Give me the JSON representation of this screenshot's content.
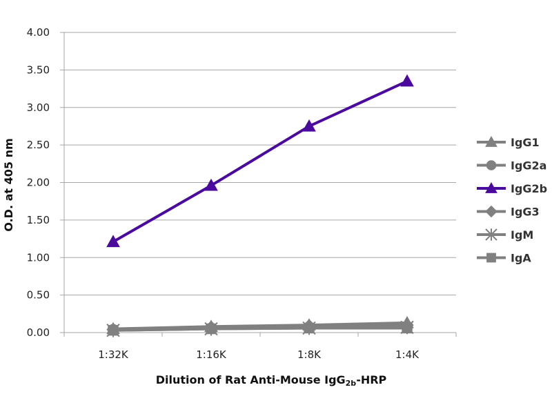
{
  "chart_data": {
    "type": "line",
    "categories": [
      "1:32K",
      "1:16K",
      "1:8K",
      "1:4K"
    ],
    "ylabel": "O.D. at 405 nm",
    "xlabel": {
      "main": "Dilution of Rat Anti-Mouse IgG",
      "sub": "2b",
      "suffix": "-HRP"
    },
    "ylim": [
      0,
      4
    ],
    "yticks": [
      "0.00",
      "0.50",
      "1.00",
      "1.50",
      "2.00",
      "2.50",
      "3.00",
      "3.50",
      "4.00"
    ],
    "grid": true,
    "legend_position": "right",
    "series": [
      {
        "name": "IgG1",
        "values": [
          0.05,
          0.08,
          0.1,
          0.13
        ],
        "color": "#808080",
        "marker": "triangle"
      },
      {
        "name": "IgG2a",
        "values": [
          0.04,
          0.06,
          0.07,
          0.08
        ],
        "color": "#808080",
        "marker": "circle"
      },
      {
        "name": "IgG2b",
        "values": [
          1.21,
          1.96,
          2.75,
          3.35
        ],
        "color": "#4b0a9e",
        "marker": "triangle"
      },
      {
        "name": "IgG3",
        "values": [
          0.04,
          0.07,
          0.09,
          0.1
        ],
        "color": "#808080",
        "marker": "diamond"
      },
      {
        "name": "IgM",
        "values": [
          0.03,
          0.05,
          0.06,
          0.07
        ],
        "color": "#808080",
        "marker": "star"
      },
      {
        "name": "IgA",
        "values": [
          0.03,
          0.05,
          0.06,
          0.06
        ],
        "color": "#808080",
        "marker": "square"
      }
    ]
  }
}
